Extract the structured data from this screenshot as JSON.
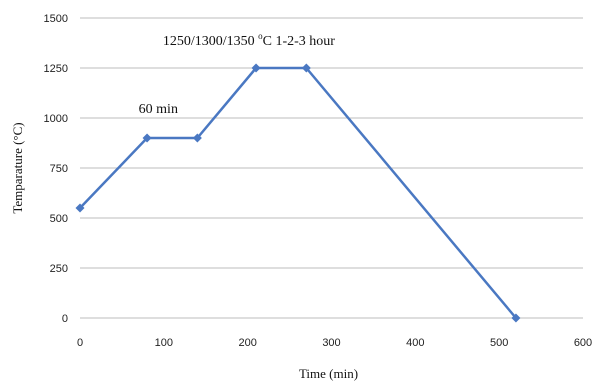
{
  "chart_data": {
    "type": "line",
    "xlabel": "Time (min)",
    "ylabel": "Temparature (°C)",
    "xlim": [
      0,
      600
    ],
    "ylim": [
      0,
      1500
    ],
    "x_ticks": [
      0,
      100,
      200,
      300,
      400,
      500,
      600
    ],
    "y_ticks": [
      0,
      250,
      500,
      750,
      1000,
      1250,
      1500
    ],
    "x_tick_labels": [
      "0",
      "100",
      "200",
      "300",
      "400",
      "500",
      "600"
    ],
    "y_tick_labels": [
      "0",
      "250",
      "500",
      "750",
      "1000",
      "1250",
      "1500"
    ],
    "grid": "horizontal",
    "legend": "none",
    "series": [
      {
        "x": [
          0,
          80,
          140,
          210,
          270,
          520
        ],
        "y": [
          550,
          900,
          900,
          1250,
          1250,
          0
        ],
        "color": "#4a78c2"
      }
    ],
    "annotations": [
      {
        "text_main": "1250/1300/1350 ",
        "text_sup": "o",
        "text_after": "C 1-2-3 hour",
        "anchor_x": 100,
        "anchor_y": 1375
      },
      {
        "text": "60 min",
        "anchor_x": 70,
        "anchor_y": 1045
      }
    ]
  },
  "colors": {
    "grid": "#bdbdbd",
    "axis": "#bdbdbd",
    "series": "#4a78c2"
  }
}
